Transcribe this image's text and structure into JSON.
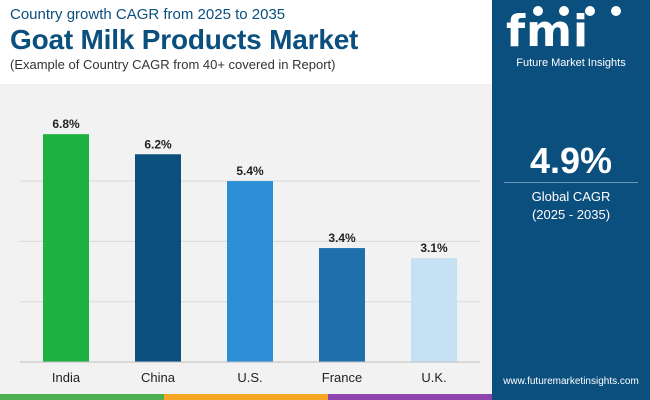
{
  "header": {
    "supertitle": "Country growth CAGR from 2025 to 2035",
    "title": "Goat Milk Products Market",
    "subtitle": "(Example of Country CAGR from 40+ covered in Report)"
  },
  "side_panel": {
    "logo_mark": "fmi",
    "logo_text": "Future Market Insights",
    "cagr_value": "4.9%",
    "cagr_label_line1": "Global CAGR",
    "cagr_label_line2": "(2025 - 2035)",
    "website": "www.futuremarketinsights.com"
  },
  "colors": {
    "brand_blue": "#0b4f7f",
    "panel_bg": "#f2f2f2",
    "stripe": [
      "#4caf50",
      "#f5a623",
      "#8e44ad"
    ]
  },
  "chart_data": {
    "type": "bar",
    "categories": [
      "India",
      "China",
      "U.S.",
      "France",
      "U.K."
    ],
    "values": [
      6.8,
      6.2,
      5.4,
      3.4,
      3.1
    ],
    "data_labels": [
      "6.8%",
      "6.2%",
      "5.4%",
      "3.4%",
      "3.1%"
    ],
    "bar_colors": [
      "#1eb13f",
      "#0b4f7f",
      "#2d8fd5",
      "#1f6fad",
      "#c5e1f3"
    ],
    "ylim": [
      0,
      7.7
    ],
    "grid": true,
    "legend": "none"
  }
}
